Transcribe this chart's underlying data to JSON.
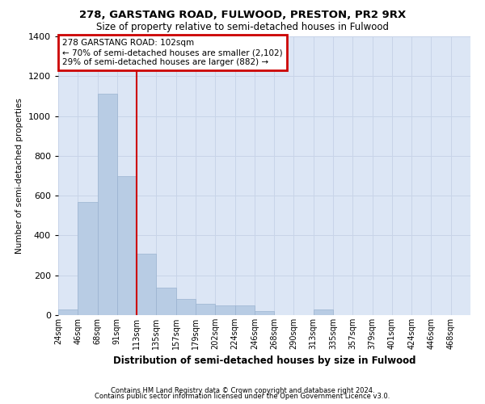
{
  "title1": "278, GARSTANG ROAD, FULWOOD, PRESTON, PR2 9RX",
  "title2": "Size of property relative to semi-detached houses in Fulwood",
  "xlabel": "Distribution of semi-detached houses by size in Fulwood",
  "ylabel": "Number of semi-detached properties",
  "footer1": "Contains HM Land Registry data © Crown copyright and database right 2024.",
  "footer2": "Contains public sector information licensed under the Open Government Licence v3.0.",
  "annotation_line1": "278 GARSTANG ROAD: 102sqm",
  "annotation_line2": "← 70% of semi-detached houses are smaller (2,102)",
  "annotation_line3": "29% of semi-detached houses are larger (882) →",
  "property_size_bin": 4,
  "bar_color": "#b8cce4",
  "bar_edge_color": "#9ab3d0",
  "property_line_color": "#cc0000",
  "annotation_box_color": "#cc0000",
  "grid_color": "#c8d4e8",
  "background_color": "#dce6f5",
  "ylim": [
    0,
    1400
  ],
  "yticks": [
    0,
    200,
    400,
    600,
    800,
    1000,
    1200,
    1400
  ],
  "bin_labels": [
    "24sqm",
    "46sqm",
    "68sqm",
    "91sqm",
    "113sqm",
    "135sqm",
    "157sqm",
    "179sqm",
    "202sqm",
    "224sqm",
    "246sqm",
    "268sqm",
    "290sqm",
    "313sqm",
    "335sqm",
    "357sqm",
    "379sqm",
    "401sqm",
    "424sqm",
    "446sqm",
    "468sqm"
  ],
  "counts": [
    30,
    570,
    1110,
    700,
    310,
    140,
    80,
    55,
    50,
    50,
    20,
    0,
    0,
    30,
    0,
    0,
    0,
    0,
    0,
    0,
    0
  ],
  "n_bins": 21
}
